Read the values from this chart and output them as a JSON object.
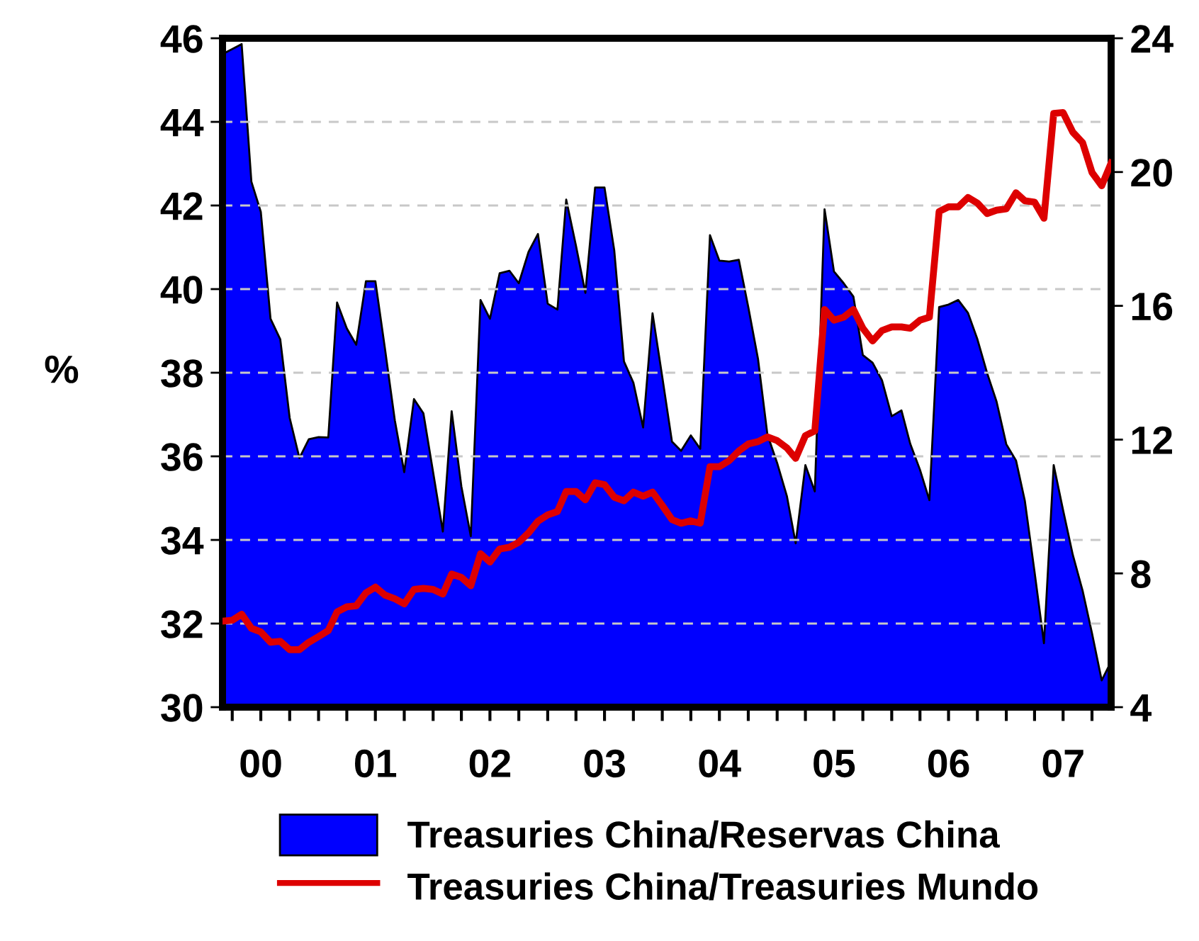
{
  "chart_data": {
    "type": "area",
    "ylabel": "%",
    "x": [
      "2000-03",
      "2000-04",
      "2000-05",
      "2000-06",
      "2000-07",
      "2000-08",
      "2000-09",
      "2000-10",
      "2000-11",
      "2000-12",
      "2001-01",
      "2001-02",
      "2001-03",
      "2001-04",
      "2001-05",
      "2001-06",
      "2001-07",
      "2001-08",
      "2001-09",
      "2001-10",
      "2001-11",
      "2001-12",
      "2002-01",
      "2002-02",
      "2002-03",
      "2002-04",
      "2002-05",
      "2002-06",
      "2002-07",
      "2002-08",
      "2002-09",
      "2002-10",
      "2002-11",
      "2002-12",
      "2003-01",
      "2003-02",
      "2003-03",
      "2003-04",
      "2003-05",
      "2003-06",
      "2003-07",
      "2003-08",
      "2003-09",
      "2003-10",
      "2003-11",
      "2003-12",
      "2004-01",
      "2004-02",
      "2004-03",
      "2004-04",
      "2004-05",
      "2004-06",
      "2004-07",
      "2004-08",
      "2004-09",
      "2004-10",
      "2004-11",
      "2004-12",
      "2005-01",
      "2005-02",
      "2005-03",
      "2005-04",
      "2005-05",
      "2005-06",
      "2005-07",
      "2005-08",
      "2005-09",
      "2005-10",
      "2005-11",
      "2005-12",
      "2006-01",
      "2006-02",
      "2006-03",
      "2006-04",
      "2006-05",
      "2006-06",
      "2006-07",
      "2006-08",
      "2006-09",
      "2006-10",
      "2006-11",
      "2006-12",
      "2007-01",
      "2007-02",
      "2007-03",
      "2007-04",
      "2007-05",
      "2007-06",
      "2007-07",
      "2007-08",
      "2007-09",
      "2007-10",
      "2007-11",
      "2007-12"
    ],
    "series": [
      {
        "name": "Treasuries China/Reservas China",
        "color": "#0000ff",
        "values": [
          45.62,
          45.74,
          45.86,
          42.57,
          41.85,
          39.29,
          38.8,
          36.92,
          35.96,
          36.41,
          36.46,
          36.45,
          39.68,
          39.06,
          38.67,
          40.19,
          40.19,
          38.55,
          36.86,
          35.62,
          37.37,
          37.03,
          35.62,
          34.2,
          37.08,
          35.28,
          34.09,
          39.74,
          39.29,
          40.38,
          40.44,
          40.14,
          40.89,
          41.32,
          39.65,
          39.51,
          42.14,
          41.04,
          39.91,
          42.43,
          42.43,
          40.93,
          38.27,
          37.76,
          36.69,
          39.42,
          37.9,
          36.35,
          36.13,
          36.5,
          36.18,
          41.29,
          40.68,
          40.66,
          40.7,
          39.57,
          38.33,
          36.52,
          35.84,
          35.05,
          33.92,
          35.79,
          35.16,
          41.91,
          40.42,
          40.14,
          39.82,
          38.42,
          38.24,
          37.82,
          36.96,
          37.1,
          36.3,
          35.68,
          34.95,
          39.57,
          39.63,
          39.74,
          39.43,
          38.8,
          37.99,
          37.31,
          36.29,
          35.9,
          34.94,
          33.24,
          31.53,
          35.79,
          34.71,
          33.64,
          32.79,
          31.77,
          30.64,
          31.09
        ]
      },
      {
        "name": "Treasuries China/Treasuries Mundo",
        "type": "line",
        "axis": "y2",
        "color": "#dd0000",
        "values": [
          6.57,
          6.6,
          6.78,
          6.36,
          6.25,
          5.94,
          5.97,
          5.72,
          5.72,
          5.94,
          6.11,
          6.29,
          6.85,
          7.0,
          7.03,
          7.42,
          7.59,
          7.35,
          7.24,
          7.09,
          7.52,
          7.55,
          7.52,
          7.38,
          7.98,
          7.88,
          7.63,
          8.59,
          8.34,
          8.73,
          8.78,
          8.93,
          9.21,
          9.56,
          9.75,
          9.85,
          10.45,
          10.45,
          10.2,
          10.71,
          10.65,
          10.28,
          10.17,
          10.43,
          10.31,
          10.43,
          10.03,
          9.61,
          9.5,
          9.57,
          9.5,
          11.19,
          11.19,
          11.37,
          11.66,
          11.87,
          11.94,
          12.08,
          11.97,
          11.75,
          11.44,
          12.12,
          12.26,
          15.89,
          15.57,
          15.66,
          15.89,
          15.33,
          14.95,
          15.26,
          15.37,
          15.37,
          15.33,
          15.57,
          15.66,
          18.82,
          18.96,
          18.96,
          19.24,
          19.07,
          18.76,
          18.86,
          18.9,
          19.38,
          19.14,
          19.1,
          18.62,
          21.75,
          21.78,
          21.19,
          20.88,
          19.99,
          19.59,
          20.27
        ]
      }
    ],
    "xlim": [
      "2000-03",
      "2007-12"
    ],
    "xticks": [
      {
        "value": "2000-07-01",
        "label": "00"
      },
      {
        "value": "2001-07-01",
        "label": "01"
      },
      {
        "value": "2002-07-01",
        "label": "02"
      },
      {
        "value": "2003-07-01",
        "label": "03"
      },
      {
        "value": "2004-07-01",
        "label": "04"
      },
      {
        "value": "2005-07-01",
        "label": "05"
      },
      {
        "value": "2006-07-01",
        "label": "06"
      },
      {
        "value": "2007-07-01",
        "label": "07"
      },
      {
        "value": "2000-04-01",
        "label": null
      },
      {
        "value": "2000-07-01",
        "label": null
      },
      {
        "value": "2000-10-01",
        "label": null
      },
      {
        "value": "2001-01-01",
        "label": null
      },
      {
        "value": "2001-04-01",
        "label": null
      },
      {
        "value": "2001-07-01",
        "label": null
      },
      {
        "value": "2001-10-01",
        "label": null
      },
      {
        "value": "2002-01-01",
        "label": null
      },
      {
        "value": "2002-04-01",
        "label": null
      },
      {
        "value": "2002-07-01",
        "label": null
      },
      {
        "value": "2002-10-01",
        "label": null
      },
      {
        "value": "2003-01-01",
        "label": null
      },
      {
        "value": "2003-04-01",
        "label": null
      },
      {
        "value": "2003-07-01",
        "label": null
      },
      {
        "value": "2003-10-01",
        "label": null
      },
      {
        "value": "2004-01-01",
        "label": null
      },
      {
        "value": "2004-04-01",
        "label": null
      },
      {
        "value": "2004-07-01",
        "label": null
      },
      {
        "value": "2004-10-01",
        "label": null
      },
      {
        "value": "2005-01-01",
        "label": null
      },
      {
        "value": "2005-04-01",
        "label": null
      },
      {
        "value": "2005-07-01",
        "label": null
      },
      {
        "value": "2005-10-01",
        "label": null
      },
      {
        "value": "2006-01-01",
        "label": null
      },
      {
        "value": "2006-04-01",
        "label": null
      },
      {
        "value": "2006-07-01",
        "label": null
      },
      {
        "value": "2006-10-01",
        "label": null
      },
      {
        "value": "2007-01-01",
        "label": null
      },
      {
        "value": "2007-04-01",
        "label": null
      },
      {
        "value": "2007-07-01",
        "label": null
      },
      {
        "value": "2007-10-01",
        "label": null
      }
    ],
    "ylim": [
      30,
      46
    ],
    "yticks": [
      30,
      32,
      34,
      36,
      38,
      40,
      42,
      44,
      46
    ],
    "y2lim": [
      4,
      24
    ],
    "y2ticks": [
      4,
      8,
      12,
      16,
      20,
      24
    ],
    "grid": "y",
    "legend": "bottom"
  }
}
